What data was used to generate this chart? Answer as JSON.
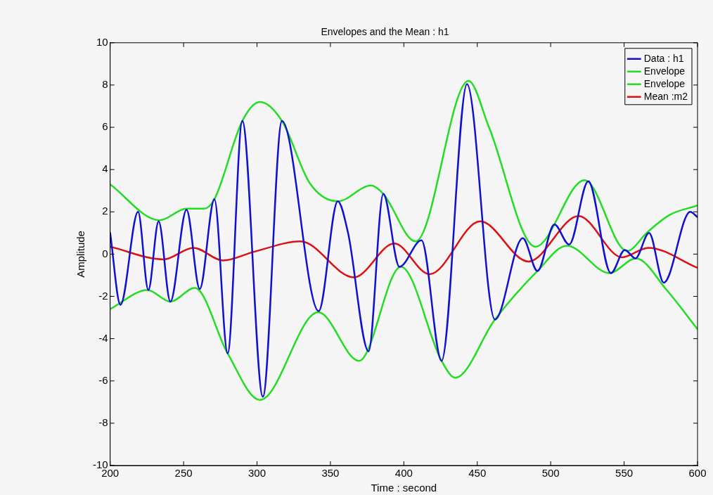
{
  "chart_data": {
    "type": "line",
    "title": "Envelopes and the Mean : h1",
    "xlabel": "Time : second",
    "ylabel": "Amplitude",
    "xlim": [
      200,
      600
    ],
    "xticks": [
      200,
      250,
      300,
      350,
      400,
      450,
      500,
      550,
      600
    ],
    "ylim": [
      -10,
      10
    ],
    "yticks": [
      -10,
      -8,
      -6,
      -4,
      -2,
      0,
      2,
      4,
      6,
      8,
      10
    ],
    "grid": false,
    "legend": "top right",
    "marker": "none",
    "line_style": "solid",
    "series": [
      {
        "name": "Data : h1",
        "color": "#1010d0",
        "x": [
          200,
          207,
          219,
          226,
          233,
          241,
          252,
          261,
          271,
          280,
          290,
          304,
          317,
          342,
          355,
          362,
          376,
          386,
          397,
          412,
          425.7,
          443,
          462,
          481,
          491,
          502.5,
          512.6,
          525.6,
          541,
          550.5,
          557.7,
          567,
          577,
          595,
          600
        ],
        "values": [
          1.0,
          -2.4,
          2.0,
          -1.7,
          1.55,
          -2.25,
          2.1,
          -1.65,
          2.6,
          -4.7,
          6.3,
          -6.75,
          6.3,
          -2.7,
          2.5,
          1.0,
          -4.6,
          2.85,
          -0.6,
          0.65,
          -5.05,
          8.05,
          -3.1,
          0.75,
          -0.8,
          1.4,
          0.45,
          3.45,
          -0.9,
          0.2,
          -0.2,
          1.0,
          -1.35,
          2.0,
          1.75
        ]
      },
      {
        "name": "Envelope",
        "color": "#22dd22",
        "x": [
          200,
          233.6,
          252,
          264,
          271,
          290,
          302,
          317,
          336,
          355,
          377.7,
          386,
          408,
          444,
          458,
          489.6,
          523,
          552,
          566,
          580.8,
          600
        ],
        "values": [
          3.3,
          1.6,
          2.15,
          2.15,
          2.6,
          6.3,
          7.2,
          6.3,
          3.35,
          2.5,
          3.25,
          2.85,
          0.6,
          8.2,
          6.0,
          0.35,
          3.5,
          0.15,
          1.05,
          1.85,
          2.3
        ]
      },
      {
        "name": "Envelope",
        "color": "#22dd22",
        "x": [
          200,
          225.4,
          241,
          257.6,
          280,
          302,
          341.7,
          369.5,
          398,
          425.7,
          435,
          462,
          491,
          511,
          540,
          558,
          579,
          600
        ],
        "values": [
          -2.6,
          -1.7,
          -2.25,
          -1.6,
          -4.7,
          -6.9,
          -2.75,
          -5.05,
          -0.6,
          -5.05,
          -5.85,
          -3.1,
          -0.8,
          0.4,
          -0.9,
          -0.2,
          -1.7,
          -3.55
        ]
      },
      {
        "name": "Mean :m2",
        "color": "#dd1111",
        "x": [
          200,
          236.5,
          256.7,
          276.8,
          297.5,
          329.6,
          366,
          393.5,
          417.5,
          452,
          484.8,
          519,
          548.6,
          566.4,
          600
        ],
        "values": [
          0.35,
          -0.25,
          0.3,
          -0.3,
          0.1,
          0.6,
          -1.1,
          0.5,
          -0.95,
          1.55,
          -0.35,
          1.8,
          -0.15,
          0.3,
          -0.65
        ]
      }
    ]
  }
}
